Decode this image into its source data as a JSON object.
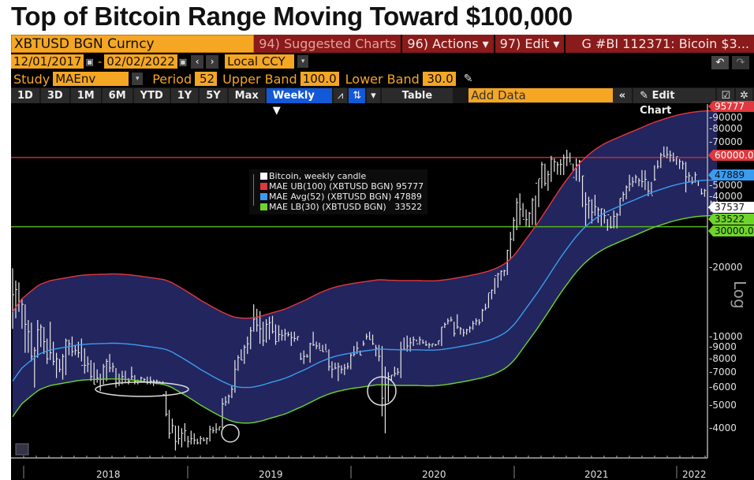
{
  "headline": "Top of Bitcoin Range Moving Toward $100,000",
  "toolbar": {
    "ticker": "XBTUSD BGN Curncy",
    "suggested": "94) Suggested Charts",
    "actions": "96) Actions ▾",
    "edit": "97) Edit ▾",
    "story": "G #BI 112371: Bicoin $3...",
    "start_date": "12/01/2017",
    "end_date": "02/02/2022",
    "date_sep": "-",
    "currency": "Local CCY",
    "study_label": "Study",
    "study_value": "MAEnv",
    "period_label": "Period",
    "period_value": "52",
    "upper_label": "Upper Band",
    "upper_value": "100.0",
    "lower_label": "Lower Band",
    "lower_value": "30.0",
    "ranges": [
      "1D",
      "3D",
      "1M",
      "6M",
      "YTD",
      "1Y",
      "5Y",
      "Max"
    ],
    "frequency": "Weekly ▼",
    "table": "Table",
    "add_data_placeholder": "Add Data",
    "edit_chart": "Edit Chart",
    "collapse": "«",
    "undo": "↶",
    "redo": "↷"
  },
  "colors": {
    "upper": "#e0383e",
    "avg": "#3a9cf0",
    "lower": "#6fd42a",
    "band_fill": "#23255e",
    "candle": "#e8e8e8",
    "hline_red": "#c92b2b",
    "hline_green": "#55b21f"
  },
  "chart_data": {
    "type": "candlestick",
    "title": "XBTUSD BGN Curncy — Bitcoin, weekly candle with MAEnv(52) envelope",
    "scale": "log",
    "ylim": [
      3000,
      100000
    ],
    "y_ticks": [
      4000,
      5000,
      6000,
      7000,
      8000,
      9000,
      10000,
      20000,
      40000,
      50000,
      70000,
      80000,
      90000
    ],
    "y_axis_label": "Log",
    "x_ticks": [
      "2018",
      "2019",
      "2020",
      "2021",
      "2022"
    ],
    "grid": false,
    "legend": {
      "placement": "top-center",
      "entries": [
        {
          "label": "Bitcoin, weekly candle",
          "value": "",
          "color": "#ffffff"
        },
        {
          "label": "MAE UB(100) (XBTUSD BGN)",
          "value": "95777",
          "color": "#e0383e"
        },
        {
          "label": "MAE Avg(52) (XBTUSD BGN)",
          "value": "47889",
          "color": "#3a9cf0"
        },
        {
          "label": "MAE LB(30) (XBTUSD BGN)",
          "value": "33522",
          "color": "#6fd42a"
        }
      ]
    },
    "last_values": [
      {
        "label": "95777",
        "value": 95777,
        "color": "#e0383e"
      },
      {
        "label": "60000.00",
        "value": 60000,
        "color": "#e0383e"
      },
      {
        "label": "47889",
        "value": 47889,
        "color": "#3a9cf0"
      },
      {
        "label": "37537",
        "value": 37537,
        "color": "#ffffff"
      },
      {
        "label": "33522",
        "value": 33522,
        "color": "#6fd42a"
      },
      {
        "label": "30000.00",
        "value": 30000,
        "color": "#6fd42a"
      }
    ],
    "horizontal_lines": [
      {
        "value": 60000,
        "color": "#c92b2b"
      },
      {
        "value": 30000,
        "color": "#55b21f"
      }
    ],
    "start_week": "2017-12-04",
    "weekly": {
      "high": [
        19800,
        17500,
        17200,
        14500,
        13800,
        11800,
        11500,
        9000,
        11800,
        11300,
        11000,
        9800,
        11600,
        9500,
        8500,
        8000,
        8400,
        9800,
        9700,
        10000,
        9200,
        9500,
        9800,
        8900,
        8200,
        7900,
        7700,
        7200,
        6900,
        7600,
        8000,
        8400,
        7700,
        7300,
        6900,
        7100,
        7100,
        6600,
        7400,
        6800,
        6500,
        6700,
        6600,
        6700,
        6700,
        6500,
        6500,
        6400,
        6400,
        5800,
        4800,
        4400,
        4100,
        4100,
        4000,
        4200,
        3700,
        3900,
        3800,
        3600,
        3700,
        3650,
        3650,
        4100,
        4050,
        4200,
        4050,
        5400,
        5500,
        5600,
        6100,
        7900,
        8300,
        8800,
        9200,
        10000,
        11000,
        13800,
        13200,
        12900,
        11600,
        11900,
        12200,
        12300,
        11300,
        11200,
        10700,
        10800,
        10500,
        10500,
        10500,
        10000,
        8500,
        8700,
        8400,
        9400,
        10500,
        9500,
        9400,
        9200,
        9300,
        8800,
        7800,
        7700,
        7700,
        7500,
        7600,
        7700,
        8500,
        9100,
        9500,
        8700,
        9600,
        10300,
        10500,
        10200,
        9200,
        9200,
        9100,
        7400,
        7000,
        6800,
        7400,
        7300,
        9500,
        9900,
        10100,
        9900,
        10000,
        9700,
        10000,
        9700,
        9600,
        9400,
        9300,
        9300,
        9600,
        11000,
        11500,
        12000,
        12200,
        11600,
        12500,
        11000,
        10800,
        10800,
        11100,
        11700,
        12000,
        11900,
        13200,
        13900,
        15400,
        16000,
        18000,
        18900,
        19400,
        19500,
        23800,
        28500,
        33000,
        40000,
        41900,
        38000,
        35700,
        34800,
        40000,
        41000,
        48200,
        57400,
        56400,
        52600,
        61000,
        59500,
        57500,
        59000,
        61800,
        64800,
        63000,
        56400,
        59500,
        58600,
        50000,
        42400,
        40500,
        39500,
        41300,
        36500,
        36000,
        35800,
        32400,
        33400,
        35300,
        34500,
        39800,
        42600,
        45400,
        50500,
        49300,
        50500,
        48800,
        52900,
        52800,
        47300,
        47000,
        55500,
        58300,
        62900,
        67000,
        66900,
        64300,
        63000,
        60000,
        59100,
        58000,
        57400,
        51800,
        49500,
        51900,
        47800,
        44000,
        43800,
        42600,
        39000,
        38700,
        39000
      ],
      "low": [
        10800,
        12000,
        12800,
        10800,
        8500,
        8500,
        7800,
        6000,
        8100,
        9000,
        8400,
        7600,
        7900,
        7500,
        6600,
        7000,
        6500,
        6800,
        8300,
        8200,
        8300,
        8100,
        7800,
        6900,
        7000,
        6400,
        6200,
        6300,
        5800,
        6200,
        6400,
        7000,
        7000,
        6000,
        6100,
        6200,
        6300,
        6200,
        6500,
        6200,
        6200,
        6300,
        6300,
        6200,
        6200,
        6100,
        6200,
        6300,
        6200,
        4500,
        3600,
        3800,
        3200,
        3400,
        3300,
        3500,
        3300,
        3400,
        3400,
        3400,
        3400,
        3500,
        3400,
        3500,
        3800,
        3800,
        3900,
        4000,
        5000,
        5100,
        5400,
        5700,
        7100,
        7900,
        7600,
        8400,
        8800,
        10500,
        10500,
        9300,
        9100,
        9400,
        9700,
        10300,
        9200,
        9500,
        9600,
        9600,
        10000,
        9100,
        9500,
        9600,
        7900,
        7600,
        8100,
        7700,
        9100,
        8800,
        8800,
        8600,
        8700,
        7100,
        6600,
        7200,
        6400,
        6900,
        6800,
        7200,
        7200,
        8200,
        8400,
        8300,
        9100,
        9700,
        9700,
        9200,
        8200,
        7800,
        4500,
        3800,
        5200,
        6400,
        6700,
        6800,
        6600,
        8700,
        8600,
        8600,
        9100,
        9500,
        9200,
        9300,
        9100,
        8900,
        9000,
        9100,
        9200,
        9100,
        10900,
        11300,
        11600,
        10000,
        10800,
        10200,
        10000,
        10200,
        10400,
        10700,
        11200,
        11200,
        11600,
        13000,
        13300,
        14500,
        15300,
        16300,
        17500,
        18300,
        18500,
        21600,
        26000,
        29000,
        30500,
        33000,
        30200,
        29800,
        30500,
        30500,
        36500,
        44000,
        45100,
        43000,
        47000,
        52000,
        50500,
        50300,
        50300,
        55000,
        57000,
        52000,
        47500,
        47000,
        36500,
        30200,
        32500,
        31000,
        33500,
        31200,
        30200,
        31000,
        28800,
        29500,
        29500,
        29500,
        33500,
        38600,
        39500,
        42800,
        44700,
        46400,
        45000,
        44500,
        43300,
        40700,
        41500,
        47500,
        53600,
        54000,
        60400,
        59500,
        57400,
        57500,
        55700,
        53400,
        53200,
        42300,
        46800,
        45900,
        46600,
        45100,
        41300,
        40500,
        34000,
        34800,
        36000,
        36500
      ],
      "close": [
        15200,
        16000,
        14100,
        13800,
        11300,
        10500,
        8200,
        8700,
        10700,
        11000,
        9500,
        8000,
        8500,
        7800,
        8000,
        7200,
        8200,
        9600,
        9300,
        8600,
        8700,
        8500,
        7500,
        7500,
        7600,
        6700,
        6200,
        6600,
        6500,
        7400,
        7800,
        7300,
        7400,
        6300,
        6400,
        6700,
        6300,
        6400,
        6700,
        6400,
        6400,
        6600,
        6500,
        6300,
        6400,
        6400,
        6400,
        6300,
        5600,
        4600,
        3800,
        4100,
        3500,
        3600,
        3800,
        3900,
        3500,
        3600,
        3550,
        3450,
        3600,
        3550,
        3600,
        3950,
        3900,
        3950,
        4050,
        5100,
        5200,
        5500,
        5900,
        7200,
        8100,
        7900,
        9000,
        9300,
        10600,
        11900,
        11200,
        10800,
        9600,
        11300,
        11500,
        10500,
        9500,
        10200,
        10100,
        10300,
        10200,
        9900,
        9800,
        10000,
        8000,
        8200,
        8200,
        9300,
        9200,
        9100,
        8700,
        8600,
        8600,
        7400,
        7200,
        7300,
        7400,
        7200,
        7300,
        7400,
        8300,
        8400,
        8900,
        8300,
        9300,
        10000,
        9700,
        9300,
        8900,
        8200,
        5400,
        6200,
        6700,
        6800,
        6900,
        7000,
        8800,
        8800,
        9100,
        9400,
        9700,
        9300,
        9700,
        9400,
        9200,
        9200,
        9300,
        9200,
        9600,
        11000,
        11300,
        11700,
        11800,
        10300,
        11000,
        10800,
        10400,
        10700,
        10900,
        11400,
        11700,
        11500,
        13000,
        13300,
        15500,
        15900,
        18400,
        18700,
        19200,
        19300,
        23700,
        26500,
        32000,
        38200,
        35800,
        32300,
        32200,
        34300,
        39200,
        46400,
        48500,
        55900,
        46300,
        50600,
        59000,
        57500,
        55800,
        56000,
        59800,
        60000,
        56200,
        49100,
        55700,
        57800,
        49900,
        37500,
        38900,
        34700,
        36700,
        35600,
        35900,
        33500,
        33800,
        29800,
        33300,
        33800,
        39900,
        41500,
        44600,
        46000,
        47000,
        49300,
        47600,
        47100,
        48200,
        42900,
        41000,
        48100,
        54800,
        61500,
        60800,
        61800,
        61300,
        58500,
        60500,
        57600,
        56300,
        49400,
        50000,
        46800,
        50400,
        47500,
        41900,
        43100,
        36300,
        38400,
        37600,
        37537
      ],
      "ma52": [
        6400,
        6700,
        7000,
        7300,
        7500,
        7700,
        7900,
        8100,
        8300,
        8450,
        8550,
        8650,
        8750,
        8800,
        8850,
        8900,
        8950,
        9000,
        9050,
        9100,
        9150,
        9200,
        9230,
        9250,
        9270,
        9290,
        9300,
        9310,
        9320,
        9330,
        9340,
        9350,
        9350,
        9350,
        9340,
        9320,
        9300,
        9280,
        9250,
        9220,
        9180,
        9140,
        9100,
        9060,
        9020,
        8980,
        8940,
        8900,
        8850,
        8780,
        8680,
        8560,
        8400,
        8250,
        8100,
        7950,
        7800,
        7650,
        7500,
        7350,
        7200,
        7070,
        6950,
        6820,
        6700,
        6590,
        6480,
        6380,
        6290,
        6200,
        6130,
        6070,
        6040,
        6020,
        6010,
        6010,
        6020,
        6040,
        6080,
        6120,
        6170,
        6230,
        6290,
        6350,
        6400,
        6460,
        6520,
        6590,
        6670,
        6760,
        6860,
        6960,
        7050,
        7150,
        7260,
        7380,
        7500,
        7620,
        7740,
        7840,
        7940,
        8040,
        8120,
        8200,
        8270,
        8320,
        8380,
        8430,
        8480,
        8520,
        8560,
        8600,
        8640,
        8680,
        8720,
        8760,
        8800,
        8820,
        8820,
        8810,
        8790,
        8780,
        8770,
        8760,
        8760,
        8760,
        8760,
        8760,
        8760,
        8760,
        8750,
        8740,
        8730,
        8730,
        8730,
        8740,
        8760,
        8790,
        8820,
        8860,
        8900,
        8950,
        9000,
        9050,
        9100,
        9150,
        9210,
        9270,
        9330,
        9390,
        9460,
        9540,
        9630,
        9730,
        9850,
        9990,
        10150,
        10340,
        10580,
        10870,
        11220,
        11650,
        12150,
        12700,
        13270,
        13850,
        14450,
        15100,
        15800,
        16550,
        17350,
        18200,
        19100,
        20050,
        21050,
        22050,
        23050,
        24050,
        25100,
        26150,
        27200,
        28200,
        29150,
        30050,
        30900,
        31700,
        32450,
        33150,
        33800,
        34400,
        34950,
        35450,
        35950,
        36450,
        36950,
        37450,
        37950,
        38450,
        38950,
        39450,
        40000,
        40550,
        41100,
        41650,
        42200,
        42700,
        43150,
        43600,
        44050,
        44500,
        44950,
        45350,
        45700,
        46050,
        46350,
        46650,
        46900,
        47150,
        47350,
        47500,
        47650,
        47750,
        47820,
        47860,
        47880,
        47889,
        47889,
        47889
      ]
    }
  }
}
